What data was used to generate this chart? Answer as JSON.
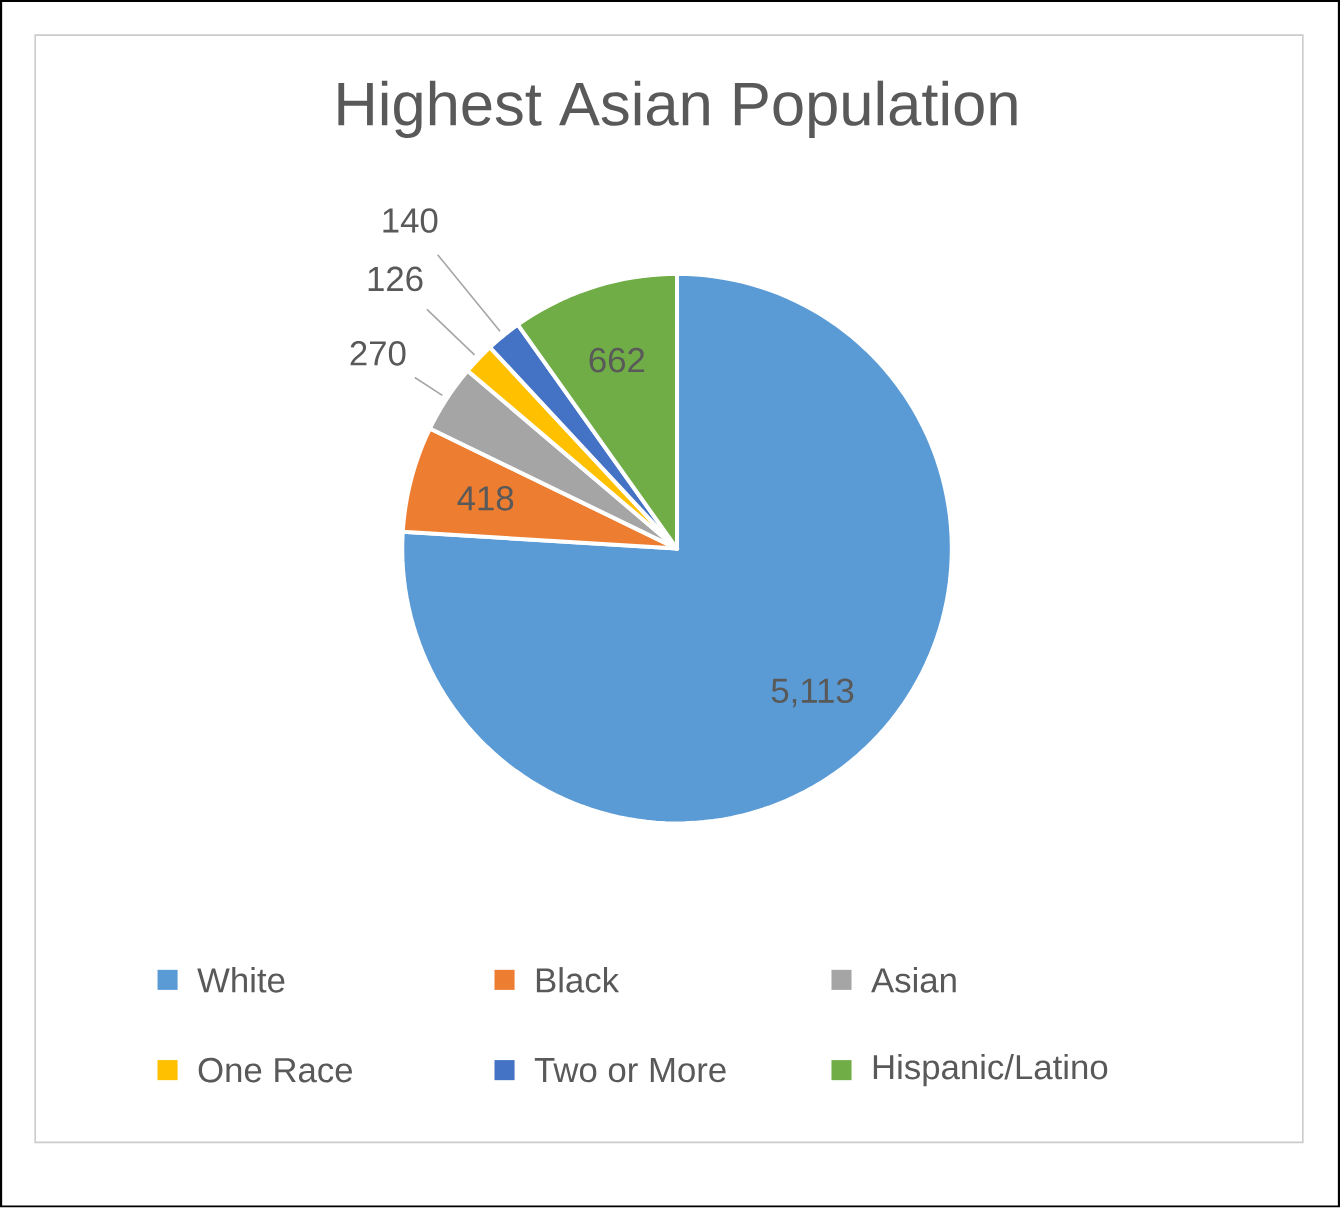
{
  "chart_data": {
    "type": "pie",
    "title": "Highest Asian Population",
    "categories": [
      "White",
      "Black",
      "Asian",
      "One Race",
      "Two or More",
      "Hispanic/Latino"
    ],
    "values": [
      5113,
      418,
      270,
      126,
      140,
      662
    ],
    "value_labels": [
      "5,113",
      "418",
      "270",
      "126",
      "140",
      "662"
    ],
    "colors": [
      "#5b9bd5",
      "#ed7d31",
      "#a5a5a5",
      "#ffc000",
      "#4472c4",
      "#70ad47"
    ],
    "legend": "bottom"
  }
}
